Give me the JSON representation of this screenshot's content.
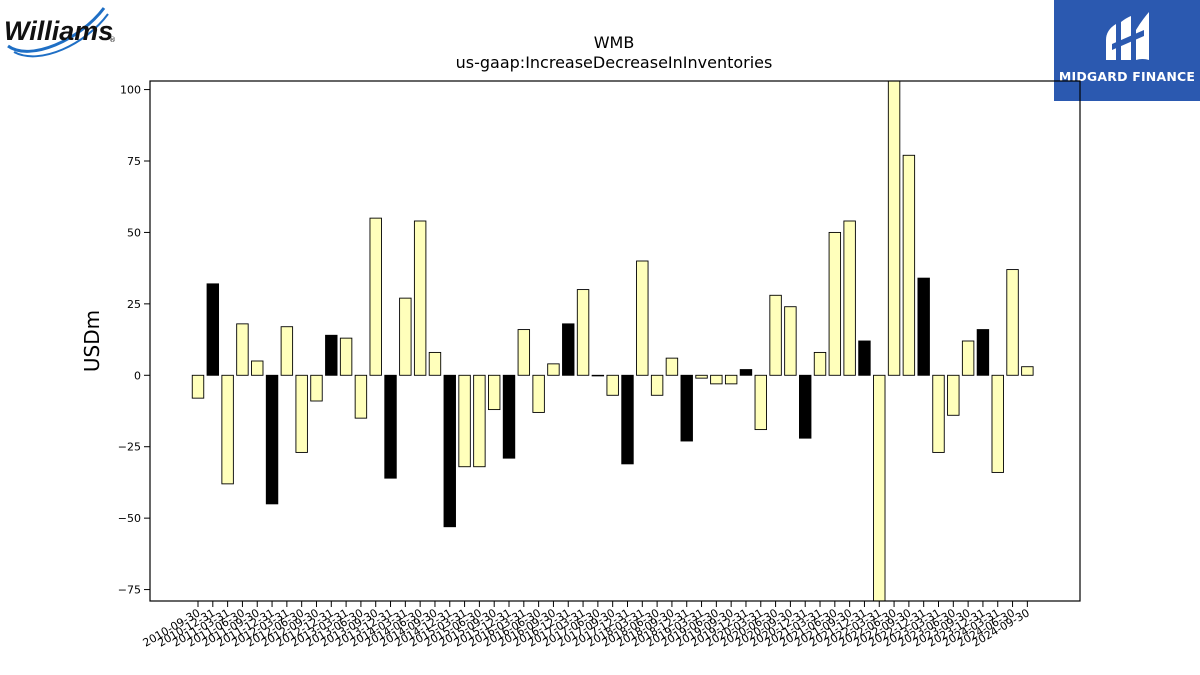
{
  "brand_left": "Williams",
  "brand_right": "MIDGARD FINANCE",
  "chart_data": {
    "type": "bar",
    "title": "WMB",
    "subtitle": "us-gaap:IncreaseDecreaseInInventories",
    "xlabel": "",
    "ylabel": "USDm",
    "ylim": [
      -79,
      103
    ],
    "yticks": [
      -75,
      -50,
      -25,
      0,
      25,
      50,
      75,
      100
    ],
    "grid": false,
    "legend": "none",
    "colors": {
      "regular": "#ffffbb",
      "highlight": "#000000",
      "edge": "#000000"
    },
    "categories": [
      "2010-09-30",
      "2010-12-31",
      "2011-03-31",
      "2011-06-30",
      "2011-09-30",
      "2011-12-31",
      "2012-03-31",
      "2012-06-30",
      "2012-09-30",
      "2012-12-31",
      "2013-03-31",
      "2013-06-30",
      "2013-09-30",
      "2013-12-31",
      "2014-03-31",
      "2014-06-30",
      "2014-09-30",
      "2014-12-31",
      "2015-03-31",
      "2015-06-30",
      "2015-09-30",
      "2015-12-31",
      "2016-03-31",
      "2016-06-30",
      "2016-09-30",
      "2016-12-31",
      "2017-03-31",
      "2017-06-30",
      "2017-09-30",
      "2017-12-31",
      "2018-03-31",
      "2018-06-30",
      "2018-09-30",
      "2018-12-31",
      "2019-03-31",
      "2019-06-30",
      "2019-09-30",
      "2019-12-31",
      "2020-03-31",
      "2020-06-30",
      "2020-09-30",
      "2020-12-31",
      "2021-03-31",
      "2021-06-30",
      "2021-09-30",
      "2021-12-31",
      "2022-03-31",
      "2022-06-30",
      "2022-09-30",
      "2022-12-31",
      "2023-03-31",
      "2023-06-30",
      "2023-09-30",
      "2023-12-31",
      "2024-03-31",
      "2024-06-30",
      "2024-09-30"
    ],
    "values": [
      -8,
      32,
      -38,
      18,
      5,
      -45,
      17,
      -27,
      -9,
      14,
      13,
      -15,
      55,
      -36,
      27,
      54,
      8,
      -53,
      -32,
      -32,
      -12,
      -29,
      16,
      -13,
      4,
      18,
      30,
      0,
      -7,
      -31,
      40,
      -7,
      6,
      -23,
      -1,
      -3,
      -3,
      2,
      -19,
      28,
      24,
      -22,
      8,
      50,
      54,
      12,
      -79,
      103,
      77,
      34,
      -27,
      -14,
      12,
      16,
      -34,
      37,
      3
    ],
    "highlight": [
      false,
      true,
      false,
      false,
      false,
      true,
      false,
      false,
      false,
      true,
      false,
      false,
      false,
      true,
      false,
      false,
      false,
      true,
      false,
      false,
      false,
      true,
      false,
      false,
      false,
      true,
      false,
      false,
      false,
      true,
      false,
      false,
      false,
      true,
      false,
      false,
      false,
      true,
      false,
      false,
      false,
      true,
      false,
      false,
      false,
      true,
      false,
      false,
      false,
      true,
      false,
      false,
      false,
      true,
      false,
      false,
      false
    ]
  }
}
